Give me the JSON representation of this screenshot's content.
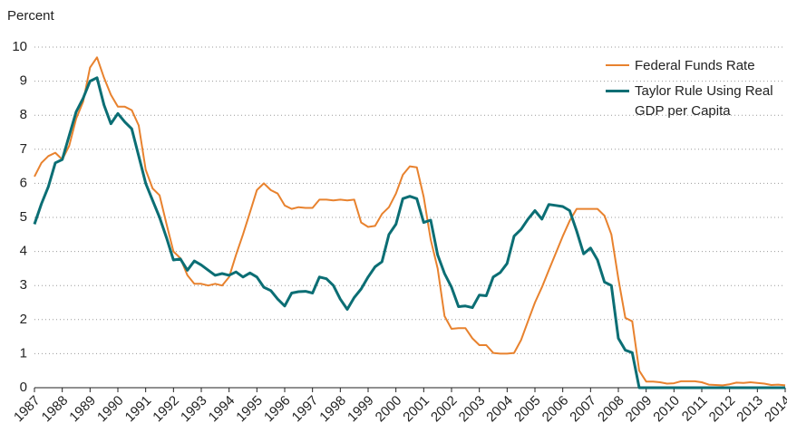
{
  "chart_data": {
    "type": "line",
    "y_label": "Percent",
    "x": [
      1987,
      1987.25,
      1987.5,
      1987.75,
      1988,
      1988.25,
      1988.5,
      1988.75,
      1989,
      1989.25,
      1989.5,
      1989.75,
      1990,
      1990.25,
      1990.5,
      1990.75,
      1991,
      1991.25,
      1991.5,
      1991.75,
      1992,
      1992.25,
      1992.5,
      1992.75,
      1993,
      1993.25,
      1993.5,
      1993.75,
      1994,
      1994.25,
      1994.5,
      1994.75,
      1995,
      1995.25,
      1995.5,
      1995.75,
      1996,
      1996.25,
      1996.5,
      1996.75,
      1997,
      1997.25,
      1997.5,
      1997.75,
      1998,
      1998.25,
      1998.5,
      1998.75,
      1999,
      1999.25,
      1999.5,
      1999.75,
      2000,
      2000.25,
      2000.5,
      2000.75,
      2001,
      2001.25,
      2001.5,
      2001.75,
      2002,
      2002.25,
      2002.5,
      2002.75,
      2003,
      2003.25,
      2003.5,
      2003.75,
      2004,
      2004.25,
      2004.5,
      2004.75,
      2005,
      2005.25,
      2005.5,
      2005.75,
      2006,
      2006.25,
      2006.5,
      2006.75,
      2007,
      2007.25,
      2007.5,
      2007.75,
      2008,
      2008.25,
      2008.5,
      2008.75,
      2009,
      2009.25,
      2009.5,
      2009.75,
      2010,
      2010.25,
      2010.5,
      2010.75,
      2011,
      2011.25,
      2011.5,
      2011.75,
      2012,
      2012.25,
      2012.5,
      2012.75,
      2013,
      2013.25,
      2013.5,
      2013.75,
      2014
    ],
    "series": [
      {
        "name": "Federal Funds Rate",
        "color": "#e8822e",
        "values": [
          6.2,
          6.6,
          6.8,
          6.9,
          6.7,
          7.1,
          7.9,
          8.4,
          9.4,
          9.7,
          9.1,
          8.6,
          8.25,
          8.25,
          8.15,
          7.7,
          6.4,
          5.85,
          5.65,
          4.8,
          4.0,
          3.8,
          3.3,
          3.05,
          3.05,
          3.0,
          3.05,
          3.0,
          3.25,
          3.9,
          4.5,
          5.15,
          5.8,
          6.0,
          5.8,
          5.7,
          5.35,
          5.25,
          5.3,
          5.28,
          5.28,
          5.52,
          5.52,
          5.5,
          5.52,
          5.5,
          5.52,
          4.85,
          4.72,
          4.75,
          5.1,
          5.3,
          5.7,
          6.25,
          6.5,
          6.47,
          5.6,
          4.35,
          3.5,
          2.1,
          1.73,
          1.75,
          1.75,
          1.45,
          1.25,
          1.25,
          1.02,
          1.0,
          1.0,
          1.02,
          1.4,
          1.95,
          2.5,
          2.95,
          3.45,
          3.95,
          4.45,
          4.9,
          5.25,
          5.25,
          5.25,
          5.25,
          5.05,
          4.5,
          3.2,
          2.05,
          1.95,
          0.5,
          0.18,
          0.18,
          0.16,
          0.12,
          0.13,
          0.19,
          0.19,
          0.19,
          0.16,
          0.09,
          0.08,
          0.07,
          0.1,
          0.15,
          0.14,
          0.16,
          0.14,
          0.12,
          0.08,
          0.09,
          0.07
        ]
      },
      {
        "name": "Taylor Rule Using Real GDP per Capita",
        "color": "#0b6e74",
        "values": [
          4.8,
          5.4,
          5.9,
          6.6,
          6.7,
          7.4,
          8.1,
          8.5,
          9.0,
          9.1,
          8.3,
          7.75,
          8.05,
          7.8,
          7.6,
          6.8,
          6.0,
          5.5,
          5.0,
          4.4,
          3.75,
          3.78,
          3.45,
          3.72,
          3.6,
          3.45,
          3.3,
          3.35,
          3.3,
          3.4,
          3.25,
          3.37,
          3.25,
          2.95,
          2.85,
          2.6,
          2.4,
          2.78,
          2.82,
          2.83,
          2.78,
          3.25,
          3.2,
          3.0,
          2.6,
          2.3,
          2.65,
          2.9,
          3.25,
          3.55,
          3.7,
          4.5,
          4.8,
          5.55,
          5.62,
          5.55,
          4.85,
          4.92,
          3.9,
          3.35,
          2.95,
          2.38,
          2.4,
          2.35,
          2.72,
          2.7,
          3.25,
          3.38,
          3.65,
          4.45,
          4.65,
          4.95,
          5.2,
          4.95,
          5.38,
          5.35,
          5.32,
          5.2,
          4.6,
          3.93,
          4.1,
          3.75,
          3.1,
          3.0,
          1.45,
          1.1,
          1.03,
          0,
          0,
          0,
          0,
          0,
          0,
          0,
          0,
          0,
          0,
          0,
          0,
          0,
          0,
          0,
          0,
          0,
          0,
          0,
          0,
          0,
          0
        ]
      }
    ],
    "xlim": [
      1987,
      2014
    ],
    "xticks": [
      1987,
      1988,
      1989,
      1990,
      1991,
      1992,
      1993,
      1994,
      1995,
      1996,
      1997,
      1998,
      1999,
      2000,
      2001,
      2002,
      2003,
      2004,
      2005,
      2006,
      2007,
      2008,
      2009,
      2010,
      2011,
      2012,
      2013,
      2014
    ],
    "ylim": [
      0,
      10
    ],
    "yticks": [
      0,
      1,
      2,
      3,
      4,
      5,
      6,
      7,
      8,
      9,
      10
    ],
    "grid": true,
    "legend": "top-right"
  }
}
